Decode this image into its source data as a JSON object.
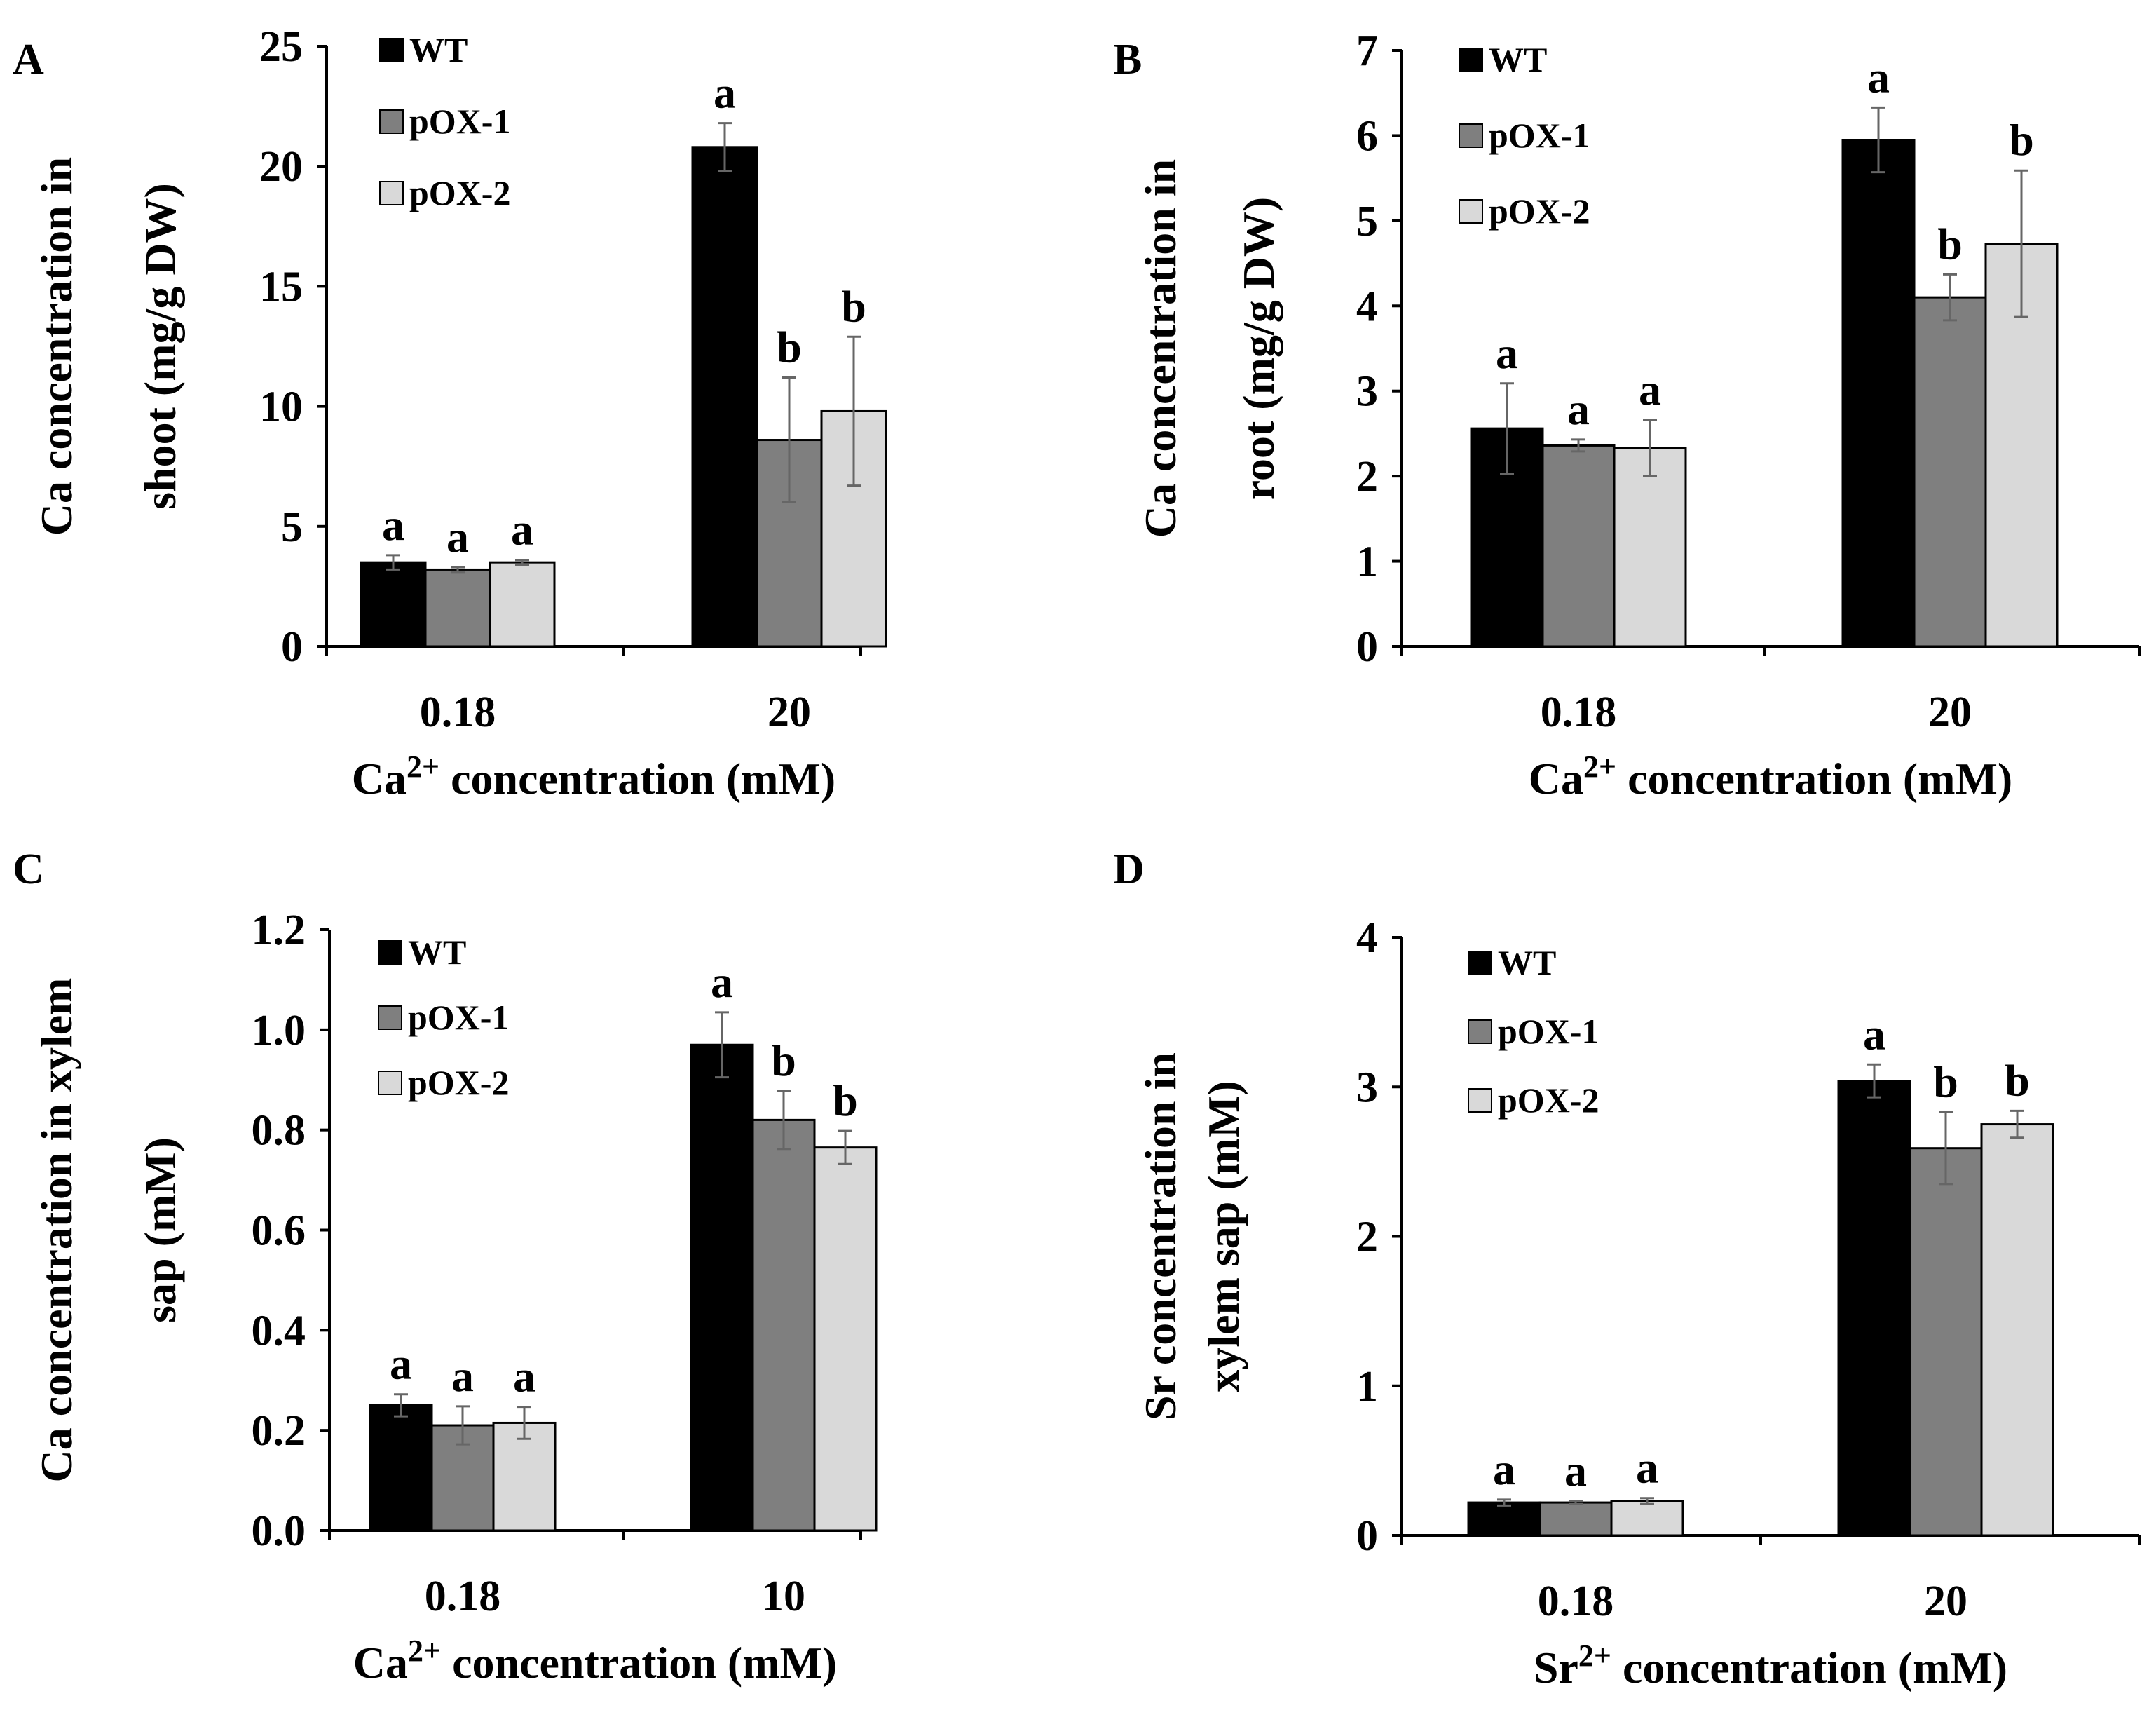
{
  "figure": {
    "colors": {
      "WT": "#000000",
      "pOX-1": "#7f7f7f",
      "pOX-2": "#d9d9d9",
      "error_bar": "#666666",
      "axis": "#000000"
    }
  },
  "chart_data": [
    {
      "panel": "A",
      "type": "bar",
      "title": "",
      "xlabel": "Ca",
      "xlabel_sup": "2+",
      "xlabel_rest": " concentration (mM)",
      "ylabel_line1": "Ca concentration in",
      "ylabel_line2": "shoot (mg/g DW)",
      "ylim": [
        0,
        25
      ],
      "yticks": [
        0,
        5,
        10,
        15,
        20,
        25
      ],
      "ytick_labels": [
        "0",
        "5",
        "10",
        "15",
        "20",
        "25"
      ],
      "categories": [
        "0.18",
        "20"
      ],
      "legend": [
        "WT",
        "pOX-1",
        "pOX-2"
      ],
      "legend_position": "top-left",
      "series": [
        {
          "name": "WT",
          "values": [
            3.5,
            20.8
          ],
          "errors": [
            0.3,
            1.0
          ],
          "labels": [
            "a",
            "a"
          ]
        },
        {
          "name": "pOX-1",
          "values": [
            3.2,
            8.6
          ],
          "errors": [
            0.1,
            2.6
          ],
          "labels": [
            "a",
            "b"
          ]
        },
        {
          "name": "pOX-2",
          "values": [
            3.5,
            9.8
          ],
          "errors": [
            0.1,
            3.1
          ],
          "labels": [
            "a",
            "b"
          ]
        }
      ]
    },
    {
      "panel": "B",
      "type": "bar",
      "title": "",
      "xlabel": "Ca",
      "xlabel_sup": "2+",
      "xlabel_rest": " concentration (mM)",
      "ylabel_line1": "Ca concentration in",
      "ylabel_line2": "root (mg/g DW)",
      "ylim": [
        0,
        7
      ],
      "yticks": [
        0,
        1,
        2,
        3,
        4,
        5,
        6,
        7
      ],
      "ytick_labels": [
        "0",
        "1",
        "2",
        "3",
        "4",
        "5",
        "6",
        "7"
      ],
      "categories": [
        "0.18",
        "20"
      ],
      "legend": [
        "WT",
        "pOX-1",
        "pOX-2"
      ],
      "legend_position": "top-left",
      "series": [
        {
          "name": "WT",
          "values": [
            2.56,
            5.95
          ],
          "errors": [
            0.53,
            0.38
          ],
          "labels": [
            "a",
            "a"
          ]
        },
        {
          "name": "pOX-1",
          "values": [
            2.36,
            4.1
          ],
          "errors": [
            0.07,
            0.27
          ],
          "labels": [
            "a",
            "b"
          ]
        },
        {
          "name": "pOX-2",
          "values": [
            2.33,
            4.73
          ],
          "errors": [
            0.33,
            0.86
          ],
          "labels": [
            "a",
            "b"
          ]
        }
      ]
    },
    {
      "panel": "C",
      "type": "bar",
      "title": "",
      "xlabel": "Ca",
      "xlabel_sup": "2+",
      "xlabel_rest": " concentration (mM)",
      "ylabel_line1": "Ca concentration in xylem",
      "ylabel_line2": "sap (mM)",
      "ylim": [
        0,
        1.2
      ],
      "yticks": [
        0,
        0.2,
        0.4,
        0.6,
        0.8,
        1.0,
        1.2
      ],
      "ytick_labels": [
        "0.0",
        "0.2",
        "0.4",
        "0.6",
        "0.8",
        "1.0",
        "1.2"
      ],
      "categories": [
        "0.18",
        "10"
      ],
      "legend": [
        "WT",
        "pOX-1",
        "pOX-2"
      ],
      "legend_position": "top-left",
      "series": [
        {
          "name": "WT",
          "values": [
            0.25,
            0.97
          ],
          "errors": [
            0.022,
            0.065
          ],
          "labels": [
            "a",
            "a"
          ]
        },
        {
          "name": "pOX-1",
          "values": [
            0.21,
            0.82
          ],
          "errors": [
            0.038,
            0.058
          ],
          "labels": [
            "a",
            "b"
          ]
        },
        {
          "name": "pOX-2",
          "values": [
            0.215,
            0.765
          ],
          "errors": [
            0.032,
            0.033
          ],
          "labels": [
            "a",
            "b"
          ]
        }
      ]
    },
    {
      "panel": "D",
      "type": "bar",
      "title": "",
      "xlabel": "Sr",
      "xlabel_sup": "2+",
      "xlabel_rest": " concentration (mM)",
      "ylabel_line1": "Sr concentration in",
      "ylabel_line2": "xylem sap (mM)",
      "ylim": [
        0,
        4
      ],
      "yticks": [
        0,
        1,
        2,
        3,
        4
      ],
      "ytick_labels": [
        "0",
        "1",
        "2",
        "3",
        "4"
      ],
      "categories": [
        "0.18",
        "20"
      ],
      "legend": [
        "WT",
        "pOX-1",
        "pOX-2"
      ],
      "legend_position": "top-left",
      "series": [
        {
          "name": "WT",
          "values": [
            0.22,
            3.04
          ],
          "errors": [
            0.02,
            0.11
          ],
          "labels": [
            "a",
            "a"
          ]
        },
        {
          "name": "pOX-1",
          "values": [
            0.22,
            2.59
          ],
          "errors": [
            0.01,
            0.24
          ],
          "labels": [
            "a",
            "b"
          ]
        },
        {
          "name": "pOX-2",
          "values": [
            0.23,
            2.75
          ],
          "errors": [
            0.02,
            0.09
          ],
          "labels": [
            "a",
            "b"
          ]
        }
      ]
    }
  ]
}
